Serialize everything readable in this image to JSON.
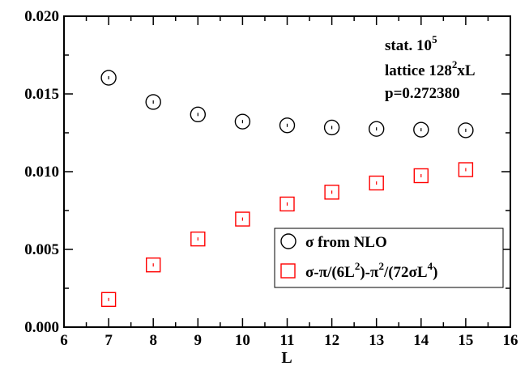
{
  "chart_data": {
    "type": "scatter",
    "xlabel": "L",
    "ylabel": "",
    "xlim": [
      6,
      16
    ],
    "ylim": [
      0.0,
      0.02
    ],
    "xticks": [
      6,
      7,
      8,
      9,
      10,
      11,
      12,
      13,
      14,
      15,
      16
    ],
    "yticks": [
      0.0,
      0.005,
      0.01,
      0.015,
      0.02
    ],
    "ytick_labels": [
      "0.000",
      "0.005",
      "0.010",
      "0.015",
      "0.020"
    ],
    "grid": false,
    "legend_position": "lower-right",
    "annotations": {
      "line1_base": "stat. 10",
      "line1_sup": "5",
      "line2_base": "lattice 128",
      "line2_sup": "2",
      "line2_tail": "xL",
      "line3": "p=0.272380"
    },
    "series": [
      {
        "label_parts": [
          "σ from NLO"
        ],
        "marker": "circle",
        "color": "#000000",
        "x": [
          7,
          8,
          9,
          10,
          11,
          12,
          13,
          14,
          15
        ],
        "y": [
          0.01604,
          0.01448,
          0.01368,
          0.01322,
          0.01298,
          0.01284,
          0.01275,
          0.0127,
          0.01266
        ]
      },
      {
        "label_parts": [
          "σ-π/(6L",
          "2",
          ")-π",
          "2",
          "/(72σL",
          "4",
          ")"
        ],
        "marker": "square",
        "color": "#ff0000",
        "x": [
          7,
          8,
          9,
          10,
          11,
          12,
          13,
          14,
          15
        ],
        "y": [
          0.00178,
          0.004,
          0.00567,
          0.00695,
          0.00792,
          0.00868,
          0.00927,
          0.00974,
          0.01013
        ]
      }
    ]
  }
}
